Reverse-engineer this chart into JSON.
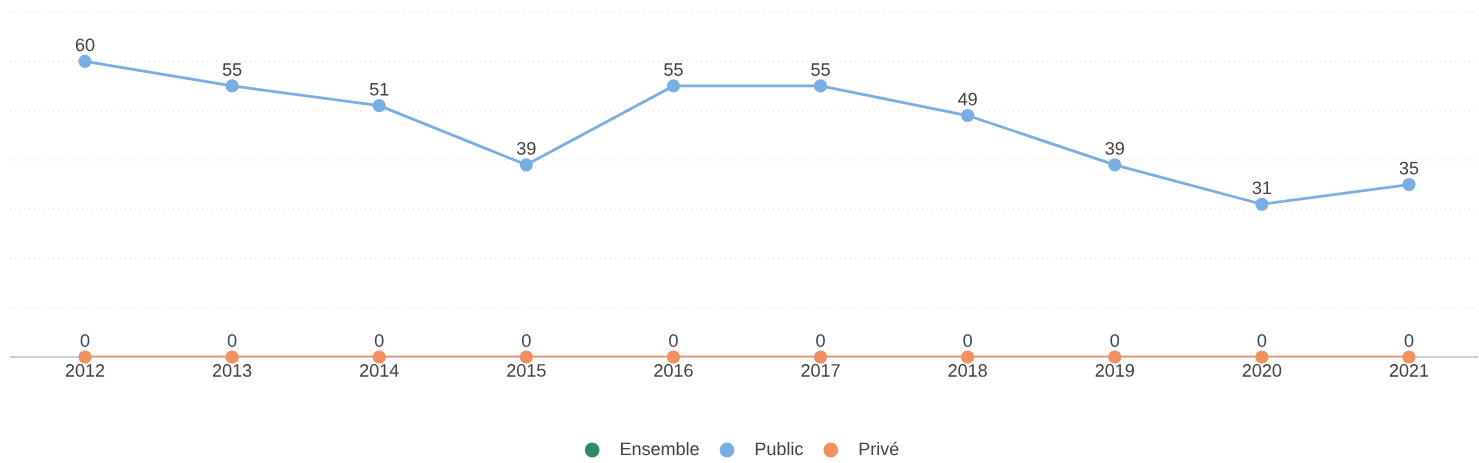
{
  "chart_data": {
    "type": "line",
    "categories": [
      "2012",
      "2013",
      "2014",
      "2015",
      "2016",
      "2017",
      "2018",
      "2019",
      "2020",
      "2021"
    ],
    "series": [
      {
        "name": "Ensemble",
        "color": "#2e8b5f",
        "values": [
          null,
          null,
          null,
          null,
          null,
          null,
          null,
          null,
          null,
          null
        ]
      },
      {
        "name": "Public",
        "color": "#7aade2",
        "values": [
          60,
          55,
          51,
          39,
          55,
          55,
          49,
          39,
          31,
          35
        ]
      },
      {
        "name": "Privé",
        "color": "#f0915f",
        "values": [
          0,
          0,
          0,
          0,
          0,
          0,
          0,
          0,
          0,
          0
        ]
      }
    ],
    "ylim": [
      0,
      70
    ],
    "yticks": [
      {
        "value": 0,
        "label": null
      },
      {
        "value": 10,
        "label": null
      },
      {
        "value": 20,
        "label": null
      },
      {
        "value": 30,
        "label": null
      },
      {
        "value": 40,
        "label": null
      },
      {
        "value": 50,
        "label": null
      },
      {
        "value": 60,
        "label": null
      },
      {
        "value": 70,
        "label": null
      }
    ],
    "grid": "y",
    "tick_labels": "x",
    "legend": "bottom",
    "data_labels": true,
    "marker": "circle",
    "line_style": "solid"
  }
}
